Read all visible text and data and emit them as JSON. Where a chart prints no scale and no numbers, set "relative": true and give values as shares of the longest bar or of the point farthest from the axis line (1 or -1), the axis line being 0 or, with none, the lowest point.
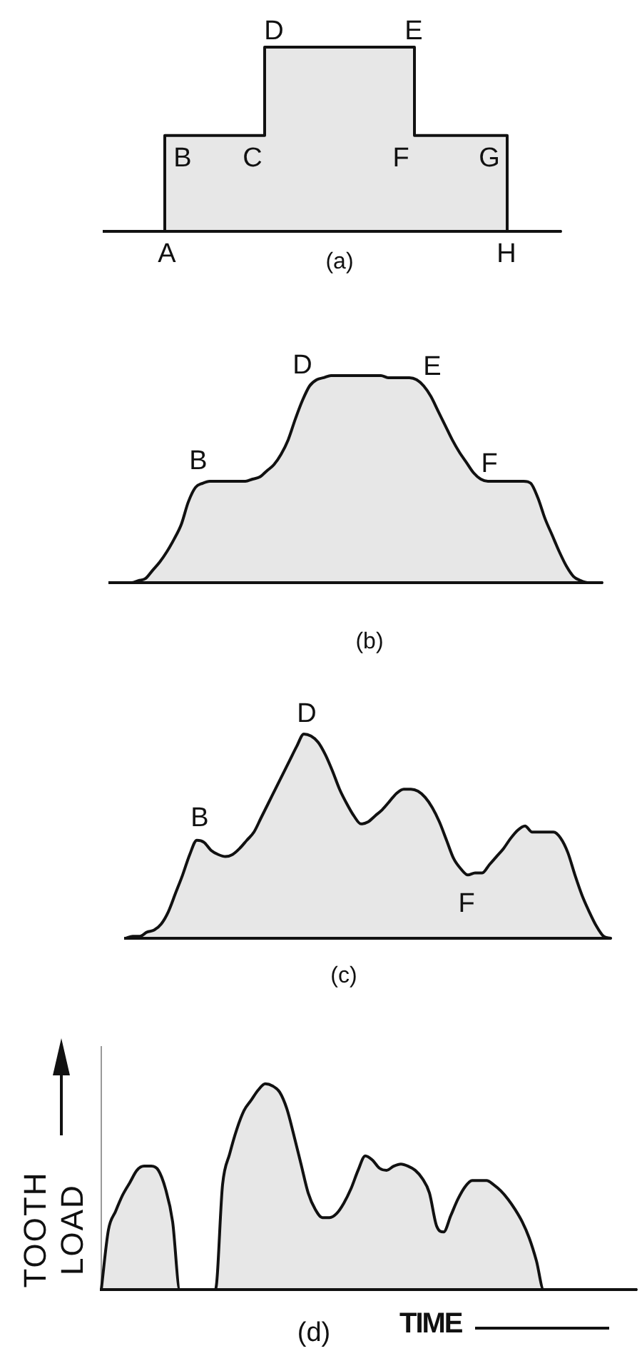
{
  "chart_data": [
    {
      "type": "step",
      "title": "(a)",
      "relative": true,
      "color": "#111111",
      "annotations": [
        "A",
        "B",
        "C",
        "D",
        "E",
        "F",
        "G",
        "H"
      ],
      "categories": [
        null,
        null,
        null,
        null,
        null,
        null,
        null,
        null,
        null,
        null,
        null,
        null,
        null,
        null,
        null,
        null,
        null,
        null,
        null,
        null,
        null,
        null,
        null,
        null,
        null,
        null,
        null,
        null,
        null,
        null,
        null,
        null,
        null,
        null,
        null,
        null,
        null,
        null,
        null,
        null,
        null,
        null,
        null,
        null,
        null,
        null,
        null,
        null,
        null,
        null,
        null,
        null,
        null,
        null,
        null,
        null,
        null,
        null,
        null,
        null,
        null,
        null,
        null,
        null,
        null
      ],
      "values": [
        0,
        0,
        0,
        0,
        0,
        0,
        0,
        0,
        0,
        0.52,
        0.52,
        0.52,
        0.52,
        0.52,
        0.52,
        0.52,
        0.52,
        0.52,
        0.52,
        0.52,
        0.52,
        0.52,
        0.52,
        1,
        1,
        1,
        1,
        1,
        1,
        1,
        1,
        1,
        1,
        1,
        1,
        1,
        1,
        1,
        1,
        1,
        1,
        1,
        1,
        1,
        0.52,
        0.52,
        0.52,
        0.52,
        0.52,
        0.52,
        0.52,
        0.52,
        0.52,
        0.52,
        0.52,
        0.52,
        0.52,
        0,
        0,
        0,
        0,
        0,
        0,
        0,
        0
      ]
    },
    {
      "type": "area",
      "title": "(b)",
      "relative": true,
      "color": "#111111",
      "annotations": [
        "B",
        "D",
        "E",
        "F"
      ],
      "categories": [
        null,
        null,
        null,
        null,
        null,
        null,
        null,
        null,
        null,
        null,
        null,
        null,
        null,
        null,
        null,
        null,
        null,
        null,
        null,
        null,
        null,
        null,
        null,
        null,
        null,
        null,
        null,
        null,
        null,
        null,
        null,
        null,
        null,
        null,
        null,
        null,
        null,
        null,
        null,
        null,
        null,
        null,
        null,
        null,
        null,
        null,
        null,
        null,
        null,
        null,
        null,
        null,
        null,
        null,
        null,
        null,
        null,
        null,
        null,
        null,
        null,
        null,
        null,
        null,
        null,
        null,
        null,
        null,
        null,
        null
      ],
      "values": [
        0,
        0,
        0,
        0,
        0.01,
        0.02,
        0.06,
        0.1,
        0.15,
        0.21,
        0.28,
        0.39,
        0.46,
        0.48,
        0.49,
        0.49,
        0.49,
        0.49,
        0.49,
        0.49,
        0.5,
        0.51,
        0.54,
        0.57,
        0.62,
        0.69,
        0.79,
        0.88,
        0.95,
        0.98,
        0.99,
        1,
        1,
        1,
        1,
        1,
        1,
        1,
        1,
        0.99,
        0.99,
        0.99,
        0.99,
        0.98,
        0.95,
        0.9,
        0.83,
        0.76,
        0.69,
        0.63,
        0.58,
        0.53,
        0.5,
        0.49,
        0.49,
        0.49,
        0.49,
        0.49,
        0.49,
        0.48,
        0.41,
        0.31,
        0.23,
        0.15,
        0.08,
        0.03,
        0.01,
        0,
        0,
        0
      ]
    },
    {
      "type": "area",
      "title": "(c)",
      "relative": true,
      "color": "#111111",
      "annotations": [
        "B",
        "D",
        "F"
      ],
      "categories": [
        null,
        null,
        null,
        null,
        null,
        null,
        null,
        null,
        null,
        null,
        null,
        null,
        null,
        null,
        null,
        null,
        null,
        null,
        null,
        null,
        null,
        null,
        null,
        null,
        null,
        null,
        null,
        null,
        null,
        null,
        null,
        null,
        null,
        null,
        null,
        null,
        null,
        null,
        null,
        null,
        null,
        null,
        null,
        null,
        null,
        null,
        null,
        null,
        null,
        null,
        null,
        null,
        null,
        null,
        null,
        null,
        null,
        null,
        null,
        null,
        null,
        null,
        null,
        null,
        null,
        null,
        null,
        null,
        null
      ],
      "values": [
        0,
        0.01,
        0.01,
        0.03,
        0.04,
        0.07,
        0.13,
        0.22,
        0.31,
        0.41,
        0.48,
        0.47,
        0.43,
        0.41,
        0.4,
        0.41,
        0.44,
        0.48,
        0.52,
        0.59,
        0.66,
        0.73,
        0.8,
        0.87,
        0.94,
        1,
        0.99,
        0.96,
        0.9,
        0.82,
        0.73,
        0.66,
        0.6,
        0.56,
        0.57,
        0.6,
        0.63,
        0.67,
        0.71,
        0.73,
        0.73,
        0.72,
        0.69,
        0.64,
        0.57,
        0.48,
        0.39,
        0.34,
        0.31,
        0.32,
        0.32,
        0.36,
        0.4,
        0.44,
        0.49,
        0.53,
        0.55,
        0.52,
        0.52,
        0.52,
        0.52,
        0.49,
        0.42,
        0.31,
        0.21,
        0.13,
        0.06,
        0.01,
        0
      ]
    },
    {
      "type": "area",
      "title": "(d)",
      "relative": true,
      "color": "#111111",
      "ylabel": "TOOTH LOAD",
      "xlabel": "TIME",
      "categories": [
        null,
        null,
        null,
        null,
        null,
        null,
        null,
        null,
        null,
        null,
        null,
        null,
        null,
        null,
        null,
        null,
        null,
        null,
        null,
        null,
        null,
        null,
        null,
        null,
        null,
        null,
        null,
        null,
        null,
        null,
        null,
        null,
        null,
        null,
        null,
        null,
        null,
        null,
        null,
        null,
        null,
        null,
        null,
        null,
        null,
        null,
        null,
        null,
        null,
        null,
        null,
        null,
        null,
        null,
        null,
        null,
        null,
        null,
        null,
        null,
        null,
        null,
        null,
        null,
        null,
        null,
        null,
        null,
        null,
        null,
        null,
        null,
        null,
        null,
        null,
        null
      ],
      "values": [
        0,
        0.29,
        0.38,
        0.46,
        0.52,
        0.58,
        0.6,
        0.6,
        0.58,
        0.49,
        0.33,
        0,
        0,
        0,
        0,
        0,
        0,
        0.51,
        0.66,
        0.78,
        0.87,
        0.92,
        0.97,
        1,
        0.99,
        0.96,
        0.88,
        0.75,
        0.61,
        0.47,
        0.39,
        0.35,
        0.35,
        0.37,
        0.42,
        0.49,
        0.58,
        0.65,
        0.63,
        0.59,
        0.58,
        0.6,
        0.61,
        0.6,
        0.58,
        0.54,
        0.47,
        0.31,
        0.28,
        0.36,
        0.44,
        0.5,
        0.53,
        0.53,
        0.53,
        0.51,
        0.48,
        0.44,
        0.39,
        0.33,
        0.25,
        0.14,
        0,
        0,
        0,
        0,
        0,
        0,
        0,
        0,
        0,
        0,
        0,
        0,
        0,
        0
      ]
    }
  ]
}
